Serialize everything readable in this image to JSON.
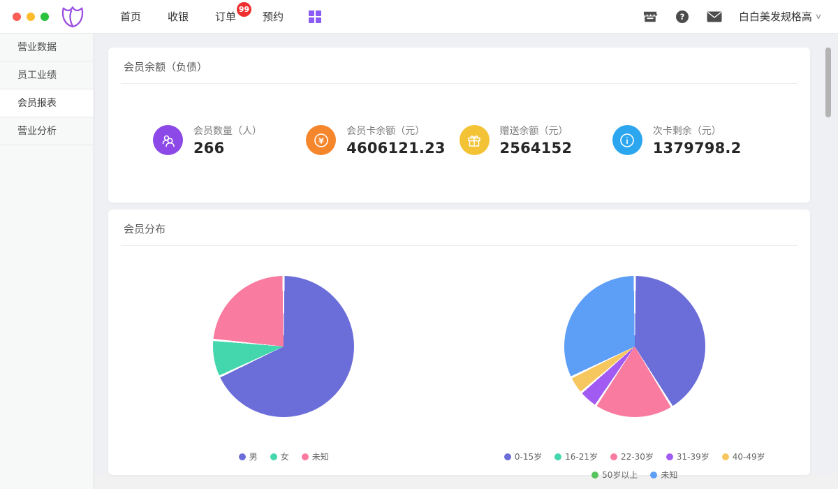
{
  "topbar": {
    "nav": [
      {
        "label": "首页"
      },
      {
        "label": "收银"
      },
      {
        "label": "订单",
        "badge": "99"
      },
      {
        "label": "预约"
      }
    ],
    "icons": [
      "apps-grid-icon",
      "store-icon",
      "help-icon",
      "mail-icon"
    ],
    "accent_color": "#8a5cf5",
    "badge_color": "#ee2f2f",
    "user": {
      "name": "白白美发规格高"
    }
  },
  "sidebar": {
    "items": [
      {
        "label": "营业数据",
        "active": false
      },
      {
        "label": "员工业绩",
        "active": false
      },
      {
        "label": "会员报表",
        "active": true
      },
      {
        "label": "营业分析",
        "active": false
      }
    ]
  },
  "balance_card": {
    "title": "会员余额（负债）",
    "stats": [
      {
        "label": "会员数量（人）",
        "value": "266",
        "icon": "members-icon",
        "color": "#8d49e8"
      },
      {
        "label": "会员卡余额（元）",
        "value": "4606121.23",
        "icon": "yuan-icon",
        "color": "#f6862b"
      },
      {
        "label": "赠送余额（元）",
        "value": "2564152",
        "icon": "gift-icon",
        "color": "#f4c235"
      },
      {
        "label": "次卡剩余（元）",
        "value": "1379798.2",
        "icon": "info-icon",
        "color": "#2ba6ef"
      }
    ]
  },
  "distribution_card": {
    "title": "会员分布"
  },
  "chart_data": [
    {
      "type": "pie",
      "name": "member-gender-distribution",
      "legend_position": "bottom",
      "segments": [
        {
          "label": "男",
          "percent": 68.0,
          "color": "#6b6ed8"
        },
        {
          "label": "女",
          "percent": 8.5,
          "color": "#44d7ae"
        },
        {
          "label": "未知",
          "percent": 23.5,
          "color": "#f97ba0"
        }
      ]
    },
    {
      "type": "pie",
      "name": "member-age-distribution",
      "legend_position": "bottom",
      "segments": [
        {
          "label": "0-15岁",
          "percent": 41.2,
          "color": "#6b6ed8"
        },
        {
          "label": "16-21岁",
          "percent": 0,
          "color": "#44d7ae"
        },
        {
          "label": "22-30岁",
          "percent": 18.1,
          "color": "#f97ba0"
        },
        {
          "label": "31-39岁",
          "percent": 4.4,
          "color": "#a25bf2"
        },
        {
          "label": "40-49岁",
          "percent": 4.1,
          "color": "#f6c75f"
        },
        {
          "label": "50岁以上",
          "percent": 0,
          "color": "#57c45c"
        },
        {
          "label": "未知",
          "percent": 32.2,
          "color": "#5d9ef7"
        }
      ]
    }
  ]
}
